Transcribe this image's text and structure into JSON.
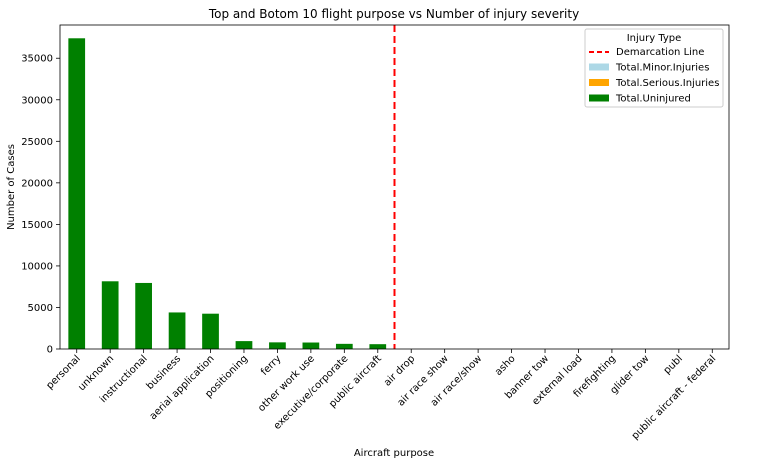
{
  "chart_data": {
    "type": "bar",
    "title": "Top and Botom 10 flight purpose  vs Number of injury severity",
    "xlabel": "Aircraft purpose",
    "ylabel": "Number of Cases",
    "ylim": [
      0,
      39000
    ],
    "yticks": [
      0,
      5000,
      10000,
      15000,
      20000,
      25000,
      30000,
      35000
    ],
    "categories": [
      "personal",
      "unknown",
      "instructional",
      "business",
      "aerial application",
      "positioning",
      "ferry",
      "other work use",
      "executive/corporate",
      "public aircraft",
      "air drop",
      "air race show",
      "air race/show",
      "asho",
      "banner tow",
      "external load",
      "firefighting",
      "glider tow",
      "publ",
      "public aircraft - federal"
    ],
    "stacked": true,
    "series": [
      {
        "name": "Total.Minor.Injuries",
        "color": "#add8e6",
        "values": [
          0,
          0,
          0,
          0,
          0,
          0,
          0,
          0,
          0,
          0,
          0,
          0,
          0,
          0,
          0,
          0,
          0,
          0,
          0,
          0
        ]
      },
      {
        "name": "Total.Serious.Injuries",
        "color": "#ffa500",
        "values": [
          0,
          0,
          0,
          0,
          0,
          0,
          0,
          0,
          0,
          0,
          0,
          0,
          0,
          0,
          0,
          0,
          0,
          0,
          0,
          0
        ]
      },
      {
        "name": "Total.Uninjured",
        "color": "#008000",
        "values": [
          37400,
          8150,
          7950,
          4400,
          4250,
          950,
          800,
          780,
          620,
          580,
          0,
          0,
          0,
          0,
          0,
          0,
          0,
          0,
          0,
          0
        ]
      }
    ],
    "demarcation": {
      "name": "Demarcation Line",
      "color": "#ff0000",
      "after_index": 9
    },
    "legend": {
      "title": "Injury Type",
      "placement": "top-right"
    },
    "grid": false
  }
}
